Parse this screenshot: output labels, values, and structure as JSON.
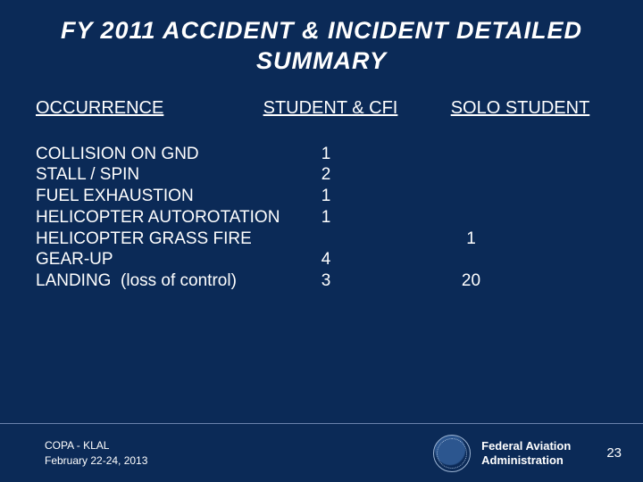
{
  "background_color": "#0b2a57",
  "text_color": "#ffffff",
  "title": "FY 2011   ACCIDENT  &  INCIDENT  DETAILED SUMMARY",
  "headers": {
    "occurrence": "OCCURRENCE",
    "student_cfi": "STUDENT & CFI",
    "solo_student": "SOLO  STUDENT"
  },
  "rows": [
    {
      "occurrence": "COLLISION ON GND",
      "student_cfi": "1",
      "solo_student": ""
    },
    {
      "occurrence": "STALL / SPIN",
      "student_cfi": "2",
      "solo_student": ""
    },
    {
      "occurrence": "FUEL EXHAUSTION",
      "student_cfi": "1",
      "solo_student": ""
    },
    {
      "occurrence": "HELICOPTER AUTOROTATION",
      "student_cfi": "1",
      "solo_student": ""
    },
    {
      "occurrence": "HELICOPTER GRASS FIRE",
      "student_cfi": "",
      "solo_student": "1"
    },
    {
      "occurrence": "GEAR-UP",
      "student_cfi": "4",
      "solo_student": ""
    },
    {
      "occurrence": "LANDING  (loss of control)",
      "student_cfi": "3",
      "solo_student": "20"
    }
  ],
  "footer": {
    "left_line1": "COPA - KLAL",
    "left_line2": "February 22-24, 2013",
    "agency_line1": "Federal Aviation",
    "agency_line2": "Administration",
    "page_number": "23"
  },
  "style": {
    "title_fontsize": 27,
    "header_fontsize": 20,
    "row_fontsize": 19,
    "footer_fontsize": 12,
    "agency_fontsize": 13,
    "divider_color": "#6a82ad"
  }
}
